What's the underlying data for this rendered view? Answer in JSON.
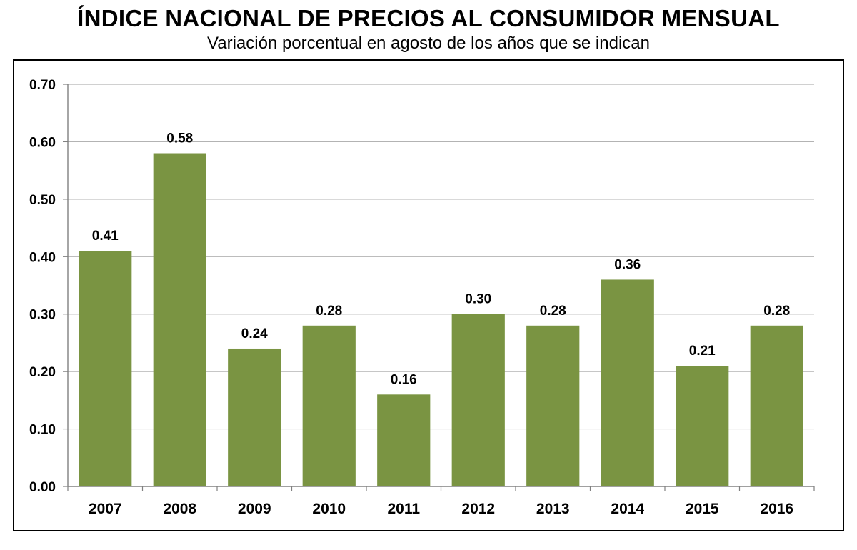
{
  "chart_data": {
    "type": "bar",
    "title": "ÍNDICE NACIONAL DE PRECIOS AL CONSUMIDOR MENSUAL",
    "subtitle": "Variación porcentual en agosto de los años que se indican",
    "categories": [
      "2007",
      "2008",
      "2009",
      "2010",
      "2011",
      "2012",
      "2013",
      "2014",
      "2015",
      "2016"
    ],
    "values": [
      0.41,
      0.58,
      0.24,
      0.28,
      0.16,
      0.3,
      0.28,
      0.36,
      0.21,
      0.28
    ],
    "data_labels": [
      "0.41",
      "0.58",
      "0.24",
      "0.28",
      "0.16",
      "0.30",
      "0.28",
      "0.36",
      "0.21",
      "0.28"
    ],
    "ylim": [
      0,
      0.7
    ],
    "yticks": [
      "0.00",
      "0.10",
      "0.20",
      "0.30",
      "0.40",
      "0.50",
      "0.60",
      "0.70"
    ],
    "xlabel": "",
    "ylabel": "",
    "grid": true,
    "legend": "none",
    "colors": {
      "bar": "#7a9442",
      "grid": "#b3b3b3",
      "axis": "#808080"
    }
  }
}
